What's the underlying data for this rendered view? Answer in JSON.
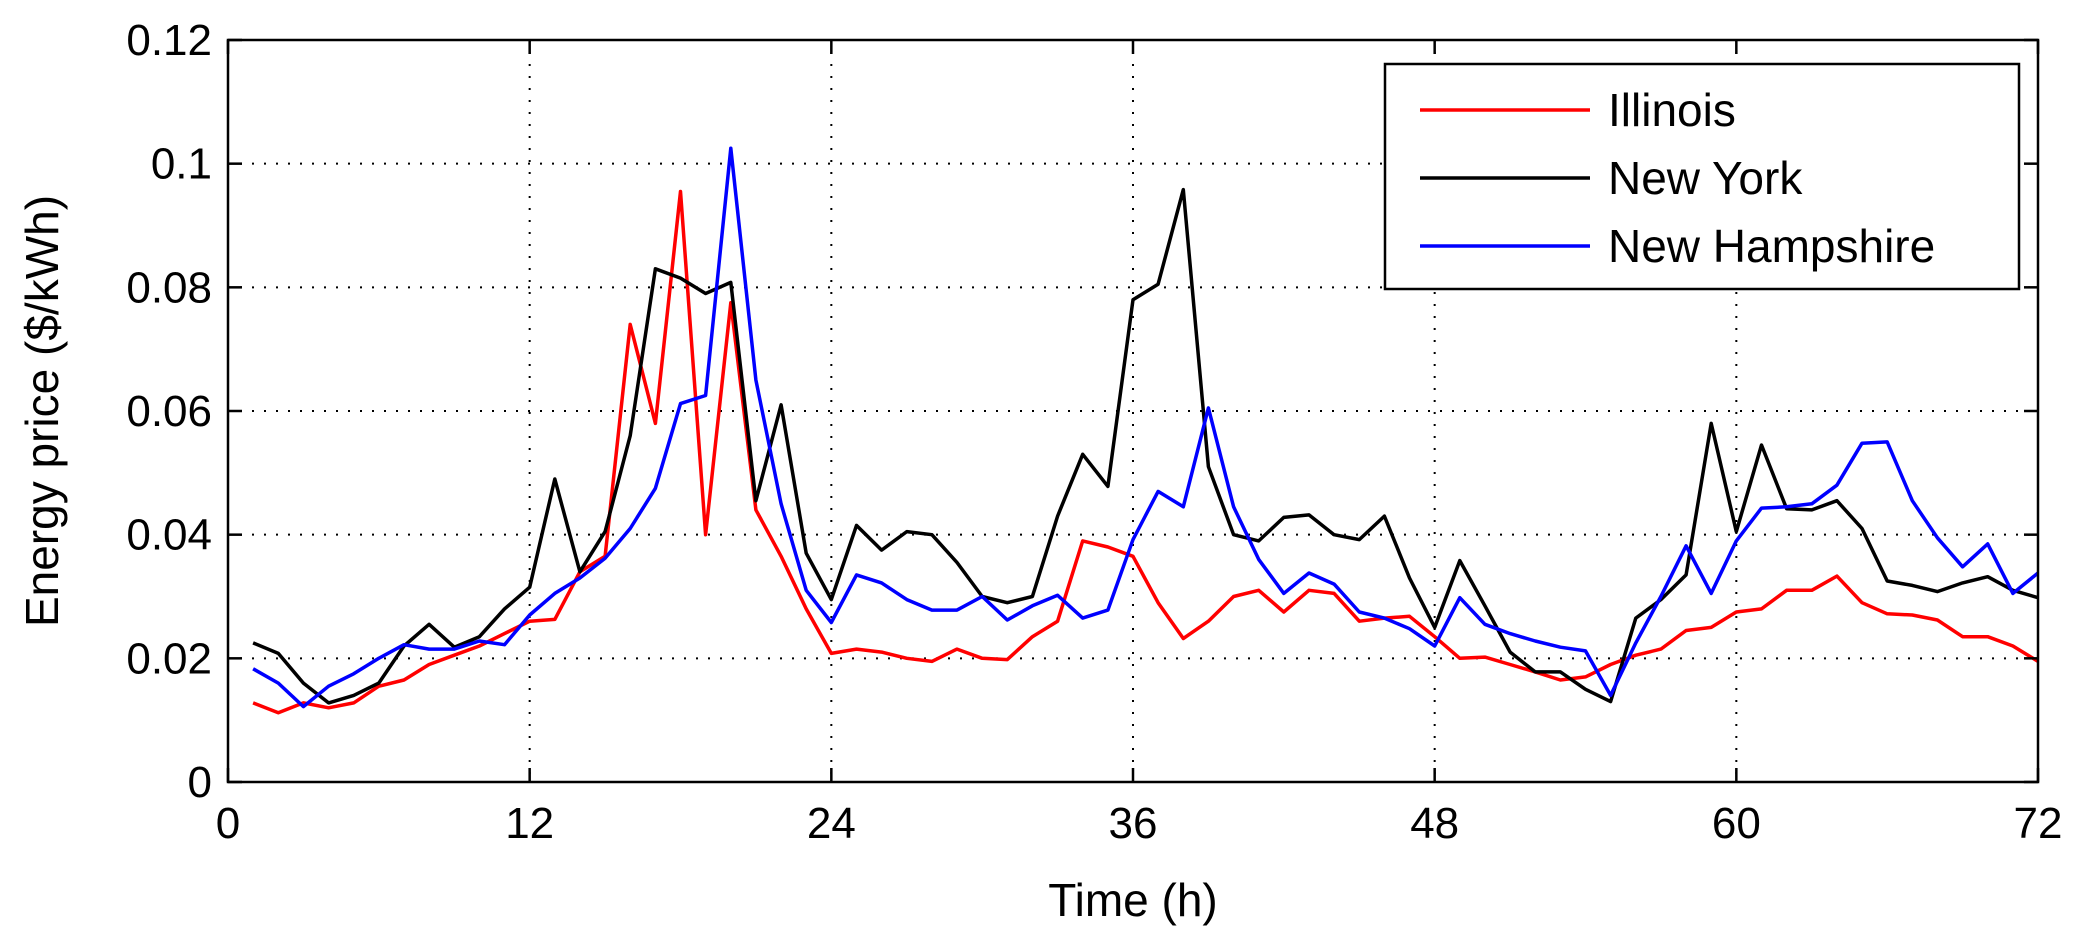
{
  "chart_data": {
    "type": "line",
    "title": "",
    "xlabel": "Time (h)",
    "ylabel": "Energy price ($/kWh)",
    "xlim": [
      0,
      72
    ],
    "ylim": [
      0,
      0.12
    ],
    "xticks": [
      0,
      12,
      24,
      36,
      48,
      60,
      72
    ],
    "xtick_labels": [
      "0",
      "12",
      "24",
      "36",
      "48",
      "60",
      "72"
    ],
    "yticks": [
      0,
      0.02,
      0.04,
      0.06,
      0.08,
      0.1,
      0.12
    ],
    "ytick_labels": [
      "0",
      "0.02",
      "0.04",
      "0.06",
      "0.08",
      "0.1",
      "0.12"
    ],
    "grid": true,
    "legend_position": "top-right",
    "x": [
      1,
      2,
      3,
      4,
      5,
      6,
      7,
      8,
      9,
      10,
      11,
      12,
      13,
      14,
      15,
      16,
      17,
      18,
      19,
      20,
      21,
      22,
      23,
      24,
      25,
      26,
      27,
      28,
      29,
      30,
      31,
      32,
      33,
      34,
      35,
      36,
      37,
      38,
      39,
      40,
      41,
      42,
      43,
      44,
      45,
      46,
      47,
      48,
      49,
      50,
      51,
      52,
      53,
      54,
      55,
      56,
      57,
      58,
      59,
      60,
      61,
      62,
      63,
      64,
      65,
      66,
      67,
      68,
      69,
      70,
      71,
      72
    ],
    "series": [
      {
        "name": "Illinois",
        "color": "#ff0000",
        "values": [
          0.0128,
          0.0112,
          0.0128,
          0.012,
          0.0128,
          0.0155,
          0.0165,
          0.019,
          0.0205,
          0.022,
          0.024,
          0.026,
          0.0263,
          0.034,
          0.0365,
          0.074,
          0.058,
          0.0955,
          0.04,
          0.0775,
          0.044,
          0.0365,
          0.028,
          0.0208,
          0.0215,
          0.021,
          0.02,
          0.0195,
          0.0215,
          0.02,
          0.0198,
          0.0235,
          0.026,
          0.039,
          0.038,
          0.0365,
          0.029,
          0.0232,
          0.026,
          0.03,
          0.031,
          0.0275,
          0.031,
          0.0305,
          0.026,
          0.0265,
          0.0268,
          0.0235,
          0.02,
          0.0202,
          0.019,
          0.0178,
          0.0165,
          0.017,
          0.019,
          0.0205,
          0.0215,
          0.0245,
          0.025,
          0.0275,
          0.028,
          0.031,
          0.031,
          0.0333,
          0.029,
          0.0272,
          0.027,
          0.0262,
          0.0235,
          0.0235,
          0.022,
          0.0195
        ]
      },
      {
        "name": "New York",
        "color": "#000000",
        "values": [
          0.0225,
          0.0208,
          0.016,
          0.0128,
          0.014,
          0.016,
          0.022,
          0.0255,
          0.0218,
          0.0235,
          0.028,
          0.0315,
          0.049,
          0.034,
          0.0405,
          0.056,
          0.083,
          0.0815,
          0.079,
          0.0808,
          0.0455,
          0.061,
          0.037,
          0.0295,
          0.0415,
          0.0375,
          0.0405,
          0.04,
          0.0355,
          0.03,
          0.029,
          0.03,
          0.043,
          0.053,
          0.0478,
          0.078,
          0.0805,
          0.0958,
          0.051,
          0.04,
          0.039,
          0.0428,
          0.0432,
          0.04,
          0.0392,
          0.043,
          0.033,
          0.025,
          0.0358,
          0.0285,
          0.021,
          0.0178,
          0.0178,
          0.015,
          0.013,
          0.0265,
          0.0295,
          0.0335,
          0.058,
          0.0405,
          0.0545,
          0.0442,
          0.044,
          0.0455,
          0.041,
          0.0325,
          0.0318,
          0.0308,
          0.0322,
          0.0332,
          0.031,
          0.0298
        ]
      },
      {
        "name": "New Hampshire",
        "color": "#0000ff",
        "values": [
          0.0183,
          0.016,
          0.0122,
          0.0155,
          0.0175,
          0.02,
          0.0222,
          0.0215,
          0.0215,
          0.0228,
          0.0222,
          0.027,
          0.0305,
          0.033,
          0.0362,
          0.041,
          0.0475,
          0.0612,
          0.0625,
          0.1025,
          0.065,
          0.045,
          0.031,
          0.0258,
          0.0335,
          0.0322,
          0.0295,
          0.0278,
          0.0278,
          0.03,
          0.0262,
          0.0285,
          0.0302,
          0.0265,
          0.0278,
          0.0392,
          0.047,
          0.0445,
          0.0605,
          0.0445,
          0.036,
          0.0305,
          0.0338,
          0.032,
          0.0275,
          0.0265,
          0.0248,
          0.022,
          0.0298,
          0.0255,
          0.024,
          0.0228,
          0.0218,
          0.0212,
          0.014,
          0.0225,
          0.03,
          0.0382,
          0.0305,
          0.039,
          0.0443,
          0.0445,
          0.045,
          0.048,
          0.0548,
          0.055,
          0.0455,
          0.0395,
          0.0348,
          0.0385,
          0.0305,
          0.0338
        ]
      }
    ]
  }
}
